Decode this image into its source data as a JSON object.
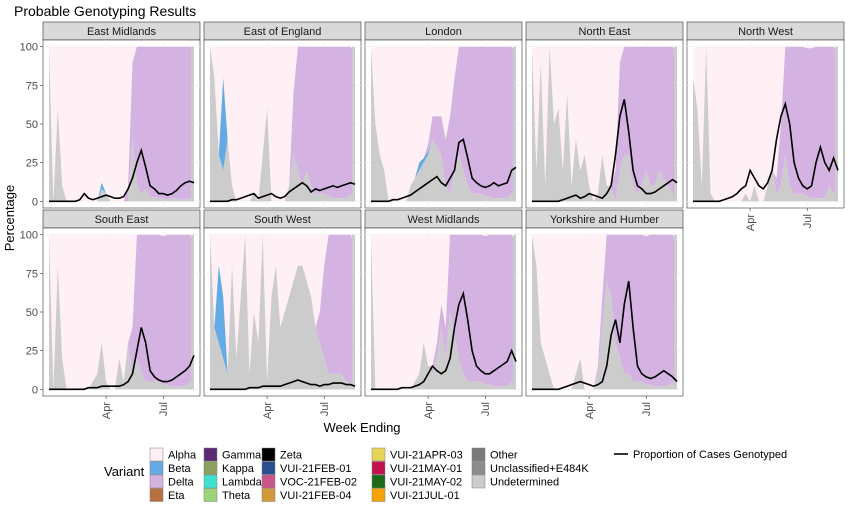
{
  "chart_data": {
    "type": "area",
    "title": "Probable Genotyping Results",
    "xlabel": "Week Ending",
    "ylabel": "Percentage",
    "ylim": [
      0,
      100
    ],
    "yticks": [
      0,
      25,
      50,
      75,
      100
    ],
    "xticks": [
      "Apr",
      "Jul"
    ],
    "xtick_weeks": [
      13,
      26
    ],
    "n_weeks": 34,
    "stack_order": [
      "Undetermined",
      "Unclassified+E484K",
      "Other",
      "Beta",
      "Delta",
      "Alpha"
    ],
    "line_series_name": "Proportion of Cases Genotyped",
    "legend_title": "Variant",
    "legend_items": [
      {
        "label": "Alpha",
        "color": "#fff0f5"
      },
      {
        "label": "Beta",
        "color": "#64abe6"
      },
      {
        "label": "Delta",
        "color": "#d4b3e3"
      },
      {
        "label": "Eta",
        "color": "#b87040"
      },
      {
        "label": "Gamma",
        "color": "#5c2a73"
      },
      {
        "label": "Kappa",
        "color": "#8aa05c"
      },
      {
        "label": "Lambda",
        "color": "#40e0d0"
      },
      {
        "label": "Theta",
        "color": "#9ad47a"
      },
      {
        "label": "Zeta",
        "color": "#000000"
      },
      {
        "label": "VUI-21FEB-01",
        "color": "#2a4f8f"
      },
      {
        "label": "VOC-21FEB-02",
        "color": "#c9558a"
      },
      {
        "label": "VUI-21FEB-04",
        "color": "#d49a3a"
      },
      {
        "label": "VUI-21APR-03",
        "color": "#e6d45a"
      },
      {
        "label": "VUI-21MAY-01",
        "color": "#c2124f"
      },
      {
        "label": "VUI-21MAY-02",
        "color": "#1a6a1a"
      },
      {
        "label": "VUI-21JUL-01",
        "color": "#f5a300"
      },
      {
        "label": "Other",
        "color": "#7a7a7a"
      },
      {
        "label": "Unclassified+E484K",
        "color": "#8c8c8c"
      },
      {
        "label": "Undetermined",
        "color": "#cccccc"
      }
    ],
    "panels": [
      {
        "name": "East Midlands",
        "undetermined": [
          100,
          0,
          60,
          10,
          0,
          0,
          0,
          0,
          0,
          0,
          0,
          0,
          8,
          5,
          0,
          0,
          0,
          0,
          0,
          40,
          10,
          5,
          8,
          2,
          3,
          2,
          2,
          1,
          2,
          2,
          1,
          1,
          2,
          0
        ],
        "beta": [
          0,
          0,
          0,
          0,
          0,
          0,
          0,
          0,
          0,
          0,
          0,
          0,
          4,
          0,
          0,
          0,
          0,
          0,
          0,
          0,
          0,
          0,
          0,
          0,
          0,
          0,
          0,
          0,
          0,
          0,
          0,
          0,
          0,
          0
        ],
        "delta": [
          0,
          0,
          0,
          0,
          0,
          0,
          0,
          0,
          0,
          0,
          0,
          0,
          0,
          0,
          0,
          0,
          0,
          0,
          10,
          50,
          90,
          95,
          95,
          98,
          98,
          98,
          99,
          99,
          99,
          99,
          99,
          99,
          99,
          99
        ],
        "line": [
          0,
          0,
          0,
          0,
          0,
          0,
          0,
          1,
          5,
          2,
          1,
          2,
          3,
          4,
          3,
          2,
          2,
          3,
          8,
          15,
          25,
          33,
          22,
          10,
          8,
          5,
          5,
          4,
          5,
          7,
          10,
          12,
          13,
          12
        ]
      },
      {
        "name": "East of England",
        "undetermined": [
          100,
          80,
          30,
          20,
          40,
          10,
          0,
          0,
          0,
          0,
          5,
          0,
          30,
          60,
          0,
          0,
          0,
          0,
          10,
          30,
          20,
          10,
          20,
          10,
          5,
          5,
          5,
          3,
          2,
          2,
          2,
          2,
          5,
          0
        ],
        "beta": [
          0,
          0,
          0,
          60,
          0,
          0,
          0,
          0,
          0,
          0,
          0,
          0,
          0,
          0,
          0,
          0,
          0,
          0,
          0,
          0,
          0,
          0,
          0,
          0,
          0,
          0,
          0,
          0,
          0,
          0,
          0,
          0,
          0,
          0
        ],
        "delta": [
          0,
          0,
          0,
          0,
          0,
          0,
          0,
          0,
          0,
          0,
          0,
          0,
          0,
          0,
          0,
          0,
          0,
          0,
          0,
          40,
          80,
          90,
          90,
          95,
          95,
          95,
          96,
          97,
          98,
          98,
          98,
          98,
          95,
          95
        ],
        "line": [
          0,
          0,
          0,
          0,
          0,
          1,
          1,
          2,
          3,
          4,
          5,
          2,
          3,
          4,
          5,
          3,
          2,
          3,
          6,
          8,
          10,
          12,
          10,
          6,
          8,
          7,
          8,
          9,
          10,
          9,
          10,
          11,
          12,
          11
        ]
      },
      {
        "name": "London",
        "undetermined": [
          100,
          50,
          30,
          20,
          0,
          0,
          0,
          0,
          0,
          10,
          15,
          20,
          25,
          30,
          40,
          35,
          30,
          10,
          5,
          20,
          30,
          20,
          10,
          5,
          5,
          5,
          3,
          3,
          2,
          2,
          2,
          2,
          5,
          0
        ],
        "beta": [
          0,
          0,
          0,
          0,
          0,
          0,
          0,
          0,
          0,
          0,
          0,
          5,
          3,
          2,
          0,
          0,
          0,
          0,
          0,
          0,
          0,
          0,
          0,
          0,
          0,
          0,
          0,
          0,
          0,
          0,
          0,
          0,
          0,
          0
        ],
        "delta": [
          0,
          0,
          0,
          0,
          0,
          0,
          0,
          0,
          0,
          0,
          0,
          0,
          0,
          5,
          15,
          20,
          25,
          30,
          50,
          60,
          80,
          90,
          95,
          95,
          95,
          95,
          97,
          97,
          98,
          98,
          98,
          98,
          95,
          95
        ],
        "line": [
          0,
          0,
          0,
          0,
          0,
          1,
          1,
          2,
          3,
          4,
          6,
          8,
          10,
          12,
          14,
          16,
          12,
          10,
          15,
          20,
          38,
          40,
          28,
          15,
          12,
          10,
          9,
          10,
          12,
          10,
          11,
          12,
          20,
          22
        ]
      },
      {
        "name": "North East",
        "undetermined": [
          100,
          20,
          90,
          10,
          100,
          50,
          60,
          20,
          70,
          10,
          40,
          20,
          30,
          10,
          0,
          5,
          30,
          10,
          10,
          0,
          20,
          30,
          30,
          10,
          5,
          10,
          20,
          10,
          10,
          20,
          15,
          10,
          5,
          0
        ],
        "beta": [
          0,
          0,
          0,
          0,
          0,
          0,
          0,
          0,
          0,
          0,
          0,
          0,
          0,
          0,
          0,
          0,
          0,
          0,
          0,
          0,
          0,
          0,
          0,
          0,
          0,
          0,
          0,
          0,
          0,
          0,
          0,
          0,
          0,
          0
        ],
        "delta": [
          0,
          0,
          0,
          0,
          0,
          0,
          0,
          0,
          0,
          0,
          0,
          0,
          0,
          0,
          0,
          0,
          0,
          0,
          0,
          20,
          70,
          90,
          90,
          95,
          95,
          95,
          96,
          97,
          98,
          98,
          98,
          98,
          95,
          95
        ],
        "line": [
          0,
          0,
          0,
          0,
          0,
          0,
          0,
          1,
          2,
          3,
          4,
          2,
          3,
          5,
          4,
          3,
          2,
          5,
          10,
          30,
          55,
          66,
          45,
          20,
          10,
          8,
          5,
          5,
          6,
          8,
          10,
          12,
          14,
          12
        ]
      },
      {
        "name": "North West",
        "undetermined": [
          80,
          60,
          10,
          100,
          5,
          0,
          0,
          0,
          0,
          0,
          0,
          0,
          5,
          0,
          10,
          0,
          0,
          10,
          20,
          5,
          10,
          30,
          10,
          5,
          5,
          5,
          3,
          2,
          2,
          2,
          2,
          10,
          5,
          0
        ],
        "beta": [
          0,
          0,
          0,
          0,
          0,
          0,
          0,
          0,
          0,
          0,
          0,
          0,
          0,
          0,
          0,
          0,
          0,
          0,
          0,
          0,
          0,
          0,
          0,
          0,
          0,
          0,
          0,
          0,
          0,
          0,
          0,
          0,
          0,
          0
        ],
        "delta": [
          0,
          0,
          0,
          0,
          0,
          0,
          0,
          0,
          0,
          0,
          0,
          0,
          0,
          0,
          0,
          0,
          0,
          0,
          0,
          10,
          40,
          70,
          90,
          95,
          95,
          95,
          96,
          97,
          98,
          98,
          98,
          98,
          95,
          95
        ],
        "line": [
          0,
          0,
          0,
          0,
          0,
          0,
          0,
          1,
          2,
          3,
          5,
          8,
          10,
          20,
          15,
          10,
          8,
          12,
          20,
          40,
          55,
          63,
          50,
          25,
          15,
          10,
          8,
          10,
          25,
          35,
          25,
          20,
          28,
          20
        ]
      },
      {
        "name": "South East",
        "undetermined": [
          100,
          0,
          80,
          20,
          0,
          0,
          0,
          0,
          0,
          0,
          5,
          10,
          30,
          5,
          0,
          0,
          20,
          5,
          30,
          10,
          20,
          10,
          5,
          5,
          5,
          5,
          3,
          3,
          2,
          2,
          2,
          2,
          5,
          0
        ],
        "beta": [
          0,
          0,
          0,
          0,
          0,
          0,
          0,
          0,
          0,
          0,
          0,
          0,
          0,
          0,
          0,
          0,
          0,
          0,
          0,
          0,
          0,
          0,
          0,
          0,
          0,
          0,
          0,
          0,
          0,
          0,
          0,
          0,
          0,
          0
        ],
        "delta": [
          0,
          0,
          0,
          0,
          0,
          0,
          0,
          0,
          0,
          0,
          0,
          0,
          0,
          0,
          0,
          0,
          0,
          0,
          0,
          30,
          80,
          90,
          95,
          95,
          95,
          95,
          96,
          97,
          98,
          98,
          98,
          98,
          95,
          95
        ],
        "line": [
          0,
          0,
          0,
          0,
          0,
          0,
          0,
          0,
          0,
          1,
          1,
          1,
          2,
          2,
          2,
          2,
          2,
          3,
          5,
          10,
          25,
          40,
          30,
          12,
          8,
          6,
          5,
          5,
          6,
          8,
          10,
          12,
          15,
          22
        ]
      },
      {
        "name": "South West",
        "undetermined": [
          100,
          40,
          30,
          20,
          10,
          80,
          20,
          60,
          100,
          10,
          50,
          30,
          100,
          5,
          60,
          80,
          40,
          50,
          60,
          70,
          80,
          80,
          70,
          60,
          40,
          30,
          20,
          10,
          10,
          10,
          10,
          5,
          5,
          0
        ],
        "beta": [
          0,
          0,
          50,
          40,
          0,
          0,
          0,
          0,
          0,
          0,
          0,
          0,
          0,
          0,
          0,
          0,
          0,
          0,
          0,
          0,
          0,
          0,
          0,
          0,
          0,
          0,
          0,
          0,
          0,
          0,
          0,
          0,
          0,
          0
        ],
        "delta": [
          0,
          0,
          0,
          0,
          0,
          0,
          0,
          0,
          0,
          0,
          0,
          0,
          0,
          0,
          0,
          0,
          0,
          0,
          0,
          0,
          0,
          0,
          0,
          0,
          0,
          20,
          60,
          90,
          95,
          95,
          96,
          97,
          95,
          95
        ],
        "line": [
          0,
          0,
          0,
          0,
          0,
          0,
          0,
          0,
          0,
          1,
          1,
          1,
          2,
          2,
          2,
          2,
          2,
          3,
          4,
          5,
          6,
          5,
          4,
          3,
          3,
          2,
          3,
          3,
          4,
          4,
          4,
          3,
          3,
          2
        ]
      },
      {
        "name": "West Midlands",
        "undetermined": [
          100,
          0,
          0,
          0,
          0,
          0,
          0,
          0,
          0,
          0,
          5,
          10,
          30,
          15,
          10,
          20,
          40,
          20,
          50,
          35,
          20,
          10,
          5,
          5,
          5,
          5,
          3,
          3,
          2,
          2,
          2,
          2,
          5,
          0
        ],
        "beta": [
          0,
          0,
          0,
          0,
          0,
          0,
          0,
          0,
          0,
          0,
          0,
          0,
          0,
          0,
          0,
          0,
          0,
          0,
          0,
          0,
          0,
          0,
          0,
          0,
          0,
          0,
          0,
          0,
          0,
          0,
          0,
          0,
          0,
          0
        ],
        "delta": [
          0,
          0,
          0,
          0,
          0,
          0,
          0,
          0,
          0,
          0,
          0,
          0,
          0,
          0,
          5,
          10,
          15,
          20,
          50,
          70,
          85,
          90,
          95,
          95,
          95,
          95,
          96,
          97,
          98,
          98,
          98,
          98,
          95,
          95
        ],
        "line": [
          0,
          0,
          0,
          0,
          0,
          0,
          0,
          1,
          1,
          1,
          2,
          3,
          5,
          10,
          15,
          12,
          10,
          12,
          20,
          40,
          55,
          62,
          45,
          25,
          15,
          12,
          10,
          10,
          12,
          14,
          16,
          18,
          25,
          18
        ]
      },
      {
        "name": "Yorkshire and Humber",
        "undetermined": [
          100,
          80,
          30,
          20,
          10,
          0,
          0,
          0,
          0,
          0,
          10,
          20,
          0,
          0,
          0,
          10,
          40,
          70,
          60,
          30,
          20,
          10,
          10,
          5,
          5,
          5,
          3,
          3,
          2,
          2,
          2,
          2,
          5,
          0
        ],
        "beta": [
          0,
          0,
          0,
          0,
          0,
          0,
          0,
          0,
          0,
          0,
          0,
          0,
          0,
          0,
          0,
          0,
          0,
          0,
          0,
          0,
          0,
          0,
          0,
          0,
          0,
          0,
          0,
          0,
          0,
          0,
          0,
          0,
          0,
          0
        ],
        "delta": [
          0,
          0,
          0,
          0,
          0,
          0,
          0,
          0,
          0,
          0,
          0,
          0,
          0,
          0,
          0,
          5,
          20,
          40,
          70,
          85,
          90,
          92,
          95,
          95,
          95,
          95,
          96,
          97,
          98,
          98,
          98,
          98,
          95,
          95
        ],
        "line": [
          0,
          0,
          0,
          0,
          0,
          0,
          0,
          1,
          2,
          3,
          4,
          5,
          4,
          3,
          2,
          3,
          5,
          15,
          35,
          45,
          30,
          55,
          70,
          40,
          15,
          10,
          8,
          7,
          8,
          10,
          12,
          10,
          8,
          5
        ]
      }
    ]
  }
}
